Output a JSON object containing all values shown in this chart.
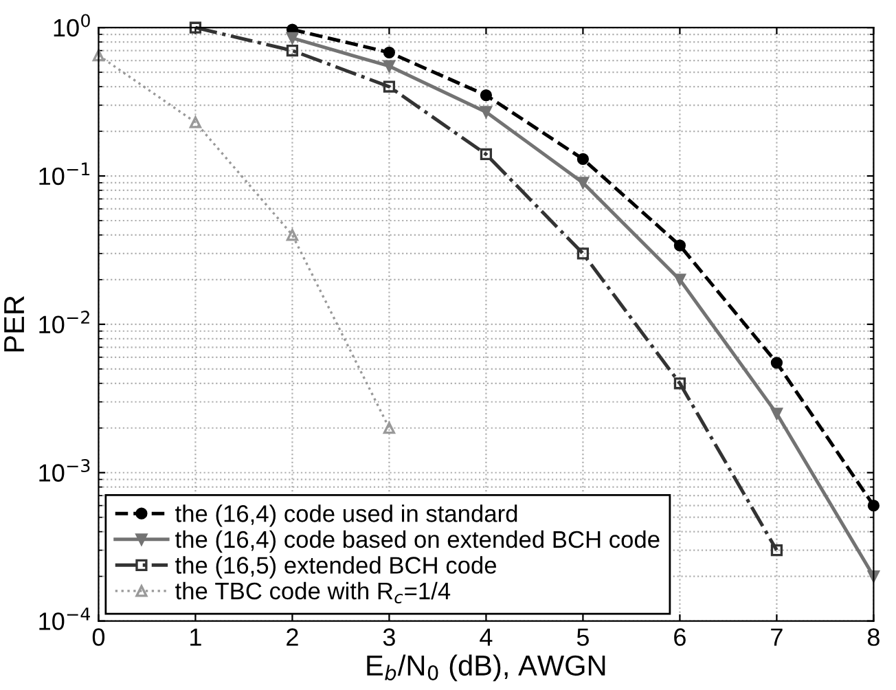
{
  "chart_data": {
    "type": "line",
    "xlabel": "E$_{b}$/N$_{0}$ (dB), AWGN",
    "ylabel": "PER",
    "log": "y",
    "xlim": [
      0,
      8
    ],
    "xticks": [
      0,
      1,
      2,
      3,
      4,
      5,
      6,
      7,
      8
    ],
    "ylim": [
      0.0001,
      1
    ],
    "yticks": [
      {
        "value": 0.0001,
        "label": "10$^{−4}$"
      },
      {
        "value": 0.001,
        "label": "10$^{−3}$"
      },
      {
        "value": 0.01,
        "label": "10$^{−2}$"
      },
      {
        "value": 0.1,
        "label": "10$^{−1}$"
      },
      {
        "value": 1,
        "label": "10$^{0}$"
      }
    ],
    "grid": true,
    "legend": "bottom left",
    "series": [
      {
        "name": "the (16,4) code used in standard",
        "color": "#000000",
        "marker": "circle",
        "line_style": "dashed",
        "x": [
          2,
          3,
          4,
          5,
          6,
          7,
          8
        ],
        "values": [
          0.97,
          0.68,
          0.35,
          0.13,
          0.034,
          0.0055,
          0.0006
        ]
      },
      {
        "name": "the (16,4) code based on extended BCH code",
        "color": "#737373",
        "marker": "triangle_down",
        "line_style": "solid",
        "x": [
          2,
          3,
          4,
          5,
          6,
          7,
          8
        ],
        "values": [
          0.85,
          0.55,
          0.27,
          0.09,
          0.02,
          0.0025,
          0.0002
        ]
      },
      {
        "name": "the (16,5) extended BCH code",
        "color": "#333333",
        "marker": "square",
        "line_style": "dashdot",
        "x": [
          1,
          2,
          3,
          4,
          5,
          6,
          7
        ],
        "values": [
          1.0,
          0.7,
          0.4,
          0.14,
          0.03,
          0.004,
          0.0003
        ]
      },
      {
        "name": "the TBC code with R$_{c}$=1/4",
        "color": "#999999",
        "marker": "triangle",
        "line_style": "dotted",
        "x": [
          0,
          1,
          2,
          3
        ],
        "values": [
          0.65,
          0.23,
          0.04,
          0.002
        ]
      }
    ]
  }
}
